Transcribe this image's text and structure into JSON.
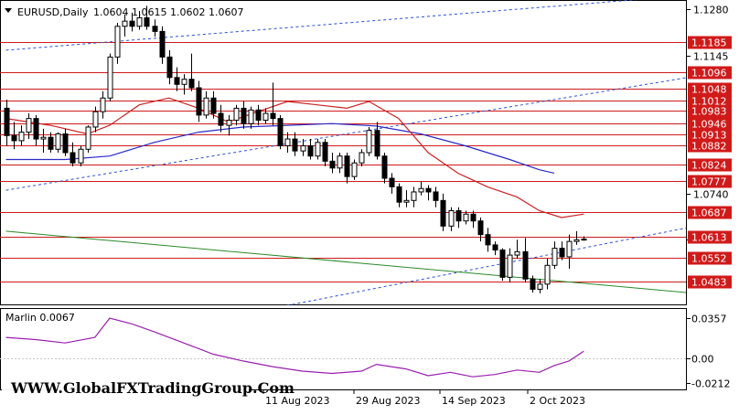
{
  "header": {
    "symbol_label": "EURUSD,Daily",
    "ohlc_label": "1.0604 1.0615 1.0602 1.0607"
  },
  "watermark": "WWW.GlobalFXTradingGroup.Com",
  "indicator": {
    "label": "Marlin 0.0067",
    "axis_ticks": [
      "0.0357",
      "0.00",
      "-0.0212"
    ]
  },
  "colors": {
    "level_line": "#d01a1a",
    "ma_fast": "#cc2222",
    "ma_slow": "#2a2ac8",
    "trend_line_dotted": "#2b4fd6",
    "trend_line_green": "#2a8a2a",
    "bullish_body": "#ffffff",
    "bearish_body": "#000000",
    "marlin": "#9a1fb0",
    "current_price_tag": "#000000"
  },
  "chart_data": {
    "type": "candlestick",
    "symbol": "EURUSD",
    "timeframe": "Daily",
    "last_ohlc": {
      "open": 1.0604,
      "high": 1.0615,
      "low": 1.0602,
      "close": 1.0607
    },
    "ylim": [
      1.0413,
      1.1307
    ],
    "price_axis_ticks": [
      "1.1280",
      "1.1145",
      "1.0740"
    ],
    "x_axis_labels": [
      "11 Aug 2023",
      "29 Aug 2023",
      "14 Sep 2023",
      "2 Oct 2023"
    ],
    "horizontal_levels": [
      {
        "label": "1.1185",
        "value": 1.1185
      },
      {
        "label": "1.1096",
        "value": 1.1096
      },
      {
        "label": "1.1048",
        "value": 1.1048
      },
      {
        "label": "1.1012",
        "value": 1.1012
      },
      {
        "label": "1.0983",
        "value": 1.0983
      },
      {
        "label": "1.0946",
        "value": 1.0946
      },
      {
        "label": "1.0913",
        "value": 1.0913
      },
      {
        "label": "1.0882",
        "value": 1.0882
      },
      {
        "label": "1.0824",
        "value": 1.0824
      },
      {
        "label": "1.0777",
        "value": 1.0777
      },
      {
        "label": "1.0687",
        "value": 1.0687
      },
      {
        "label": "1.0613",
        "value": 1.0613
      },
      {
        "label": "1.0552",
        "value": 1.0552
      },
      {
        "label": "1.0483",
        "value": 1.0483
      }
    ],
    "candles": [
      [
        1.099,
        1.1015,
        1.088,
        1.091
      ],
      [
        1.091,
        1.095,
        1.087,
        1.0895
      ],
      [
        1.0895,
        1.094,
        1.088,
        1.092
      ],
      [
        1.092,
        1.0975,
        1.09,
        1.096
      ],
      [
        1.096,
        1.097,
        1.088,
        1.09
      ],
      [
        1.09,
        1.093,
        1.086,
        1.0905
      ],
      [
        1.0905,
        1.092,
        1.086,
        1.087
      ],
      [
        1.087,
        1.092,
        1.086,
        1.0915
      ],
      [
        1.0915,
        1.093,
        1.085,
        1.086
      ],
      [
        1.086,
        1.089,
        1.082,
        1.083
      ],
      [
        1.083,
        1.088,
        1.082,
        1.087
      ],
      [
        1.087,
        1.094,
        1.086,
        1.0935
      ],
      [
        1.0935,
        1.0995,
        1.092,
        1.098
      ],
      [
        1.098,
        1.104,
        1.096,
        1.102
      ],
      [
        1.102,
        1.115,
        1.101,
        1.114
      ],
      [
        1.114,
        1.124,
        1.112,
        1.123
      ],
      [
        1.123,
        1.1265,
        1.12,
        1.1245
      ],
      [
        1.1245,
        1.127,
        1.1215,
        1.123
      ],
      [
        1.123,
        1.1275,
        1.122,
        1.1255
      ],
      [
        1.1255,
        1.129,
        1.122,
        1.123
      ],
      [
        1.123,
        1.125,
        1.12,
        1.1215
      ],
      [
        1.1215,
        1.123,
        1.112,
        1.114
      ],
      [
        1.114,
        1.116,
        1.106,
        1.108
      ],
      [
        1.108,
        1.111,
        1.104,
        1.106
      ],
      [
        1.106,
        1.109,
        1.103,
        1.1075
      ],
      [
        1.1075,
        1.115,
        1.104,
        1.105
      ],
      [
        1.105,
        1.107,
        1.095,
        1.097
      ],
      [
        1.097,
        1.104,
        1.096,
        1.102
      ],
      [
        1.102,
        1.104,
        1.096,
        1.0975
      ],
      [
        1.0975,
        1.1,
        1.092,
        1.094
      ],
      [
        1.094,
        1.097,
        1.091,
        1.0955
      ],
      [
        1.0955,
        1.1,
        1.094,
        1.099
      ],
      [
        1.099,
        1.101,
        1.093,
        1.0945
      ],
      [
        1.0945,
        1.0995,
        1.093,
        1.0985
      ],
      [
        1.0985,
        1.1,
        1.094,
        1.0955
      ],
      [
        1.0955,
        1.099,
        1.0945,
        1.0975
      ],
      [
        1.0975,
        1.1065,
        1.094,
        1.096
      ],
      [
        1.096,
        1.097,
        1.087,
        1.088
      ],
      [
        1.088,
        1.092,
        1.086,
        1.09
      ],
      [
        1.09,
        1.092,
        1.085,
        1.0865
      ],
      [
        1.0865,
        1.09,
        1.085,
        1.088
      ],
      [
        1.088,
        1.09,
        1.084,
        1.085
      ],
      [
        1.085,
        1.09,
        1.084,
        1.089
      ],
      [
        1.089,
        1.09,
        1.082,
        1.0835
      ],
      [
        1.0835,
        1.086,
        1.08,
        1.0815
      ],
      [
        1.0815,
        1.086,
        1.08,
        1.085
      ],
      [
        1.085,
        1.086,
        1.077,
        1.079
      ],
      [
        1.079,
        1.084,
        1.078,
        1.083
      ],
      [
        1.083,
        1.087,
        1.082,
        1.086
      ],
      [
        1.086,
        1.0935,
        1.085,
        1.0925
      ],
      [
        1.0925,
        1.095,
        1.084,
        1.085
      ],
      [
        1.085,
        1.086,
        1.077,
        1.0785
      ],
      [
        1.0785,
        1.08,
        1.074,
        1.076
      ],
      [
        1.076,
        1.077,
        1.07,
        1.0715
      ],
      [
        1.0715,
        1.075,
        1.07,
        1.072
      ],
      [
        1.072,
        1.076,
        1.07,
        1.0745
      ],
      [
        1.0745,
        1.0775,
        1.0735,
        1.0755
      ],
      [
        1.0755,
        1.0765,
        1.072,
        1.0745
      ],
      [
        1.0745,
        1.076,
        1.07,
        1.072
      ],
      [
        1.072,
        1.074,
        1.063,
        1.0645
      ],
      [
        1.0645,
        1.07,
        1.063,
        1.069
      ],
      [
        1.069,
        1.07,
        1.064,
        1.066
      ],
      [
        1.066,
        1.069,
        1.065,
        1.068
      ],
      [
        1.068,
        1.069,
        1.064,
        1.066
      ],
      [
        1.066,
        1.067,
        1.06,
        1.062
      ],
      [
        1.062,
        1.064,
        1.057,
        1.059
      ],
      [
        1.059,
        1.06,
        1.056,
        1.0575
      ],
      [
        1.0575,
        1.058,
        1.0485,
        1.0495
      ],
      [
        1.0495,
        1.058,
        1.048,
        1.056
      ],
      [
        1.056,
        1.0605,
        1.055,
        1.057
      ],
      [
        1.057,
        1.061,
        1.048,
        1.049
      ],
      [
        1.049,
        1.05,
        1.045,
        1.046
      ],
      [
        1.046,
        1.049,
        1.0448,
        1.0475
      ],
      [
        1.0475,
        1.055,
        1.046,
        1.053
      ],
      [
        1.053,
        1.06,
        1.052,
        1.058
      ],
      [
        1.058,
        1.06,
        1.0545,
        1.0555
      ],
      [
        1.0555,
        1.062,
        1.052,
        1.06
      ],
      [
        1.06,
        1.063,
        1.059,
        1.0605
      ],
      [
        1.0604,
        1.0615,
        1.0602,
        1.0607
      ]
    ],
    "ma_fast": [
      [
        0,
        1.096
      ],
      [
        6,
        1.094
      ],
      [
        11,
        1.0915
      ],
      [
        14,
        1.094
      ],
      [
        18,
        1.1
      ],
      [
        22,
        1.102
      ],
      [
        26,
        1.099
      ],
      [
        30,
        1.095
      ],
      [
        34,
        1.098
      ],
      [
        38,
        1.101
      ],
      [
        42,
        1.1
      ],
      [
        46,
        1.099
      ],
      [
        49,
        1.101
      ],
      [
        53,
        1.096
      ],
      [
        57,
        1.086
      ],
      [
        61,
        1.08
      ],
      [
        65,
        1.076
      ],
      [
        69,
        1.073
      ],
      [
        72,
        1.069
      ],
      [
        75,
        1.067
      ],
      [
        78,
        1.068
      ]
    ],
    "ma_slow": [
      [
        0,
        1.084
      ],
      [
        8,
        1.084
      ],
      [
        14,
        1.085
      ],
      [
        20,
        1.089
      ],
      [
        26,
        1.092
      ],
      [
        32,
        1.0935
      ],
      [
        38,
        1.094
      ],
      [
        44,
        1.0945
      ],
      [
        50,
        1.0938
      ],
      [
        56,
        1.0915
      ],
      [
        62,
        1.088
      ],
      [
        68,
        1.084
      ],
      [
        72,
        1.081
      ],
      [
        74,
        1.08
      ]
    ],
    "dotted_trend_upper": [
      [
        0,
        1.116
      ],
      [
        92,
        1.132
      ]
    ],
    "dotted_trend_lower": [
      [
        0,
        1.075
      ],
      [
        92,
        1.108
      ]
    ],
    "dotted_trend_channel": [
      [
        35,
        1.04
      ],
      [
        92,
        1.064
      ]
    ],
    "green_trend": [
      [
        0,
        1.063
      ],
      [
        92,
        1.045
      ]
    ],
    "marlin": [
      [
        0,
        0.019
      ],
      [
        4,
        0.017
      ],
      [
        8,
        0.014
      ],
      [
        12,
        0.019
      ],
      [
        14,
        0.036
      ],
      [
        17,
        0.031
      ],
      [
        20,
        0.024
      ],
      [
        24,
        0.014
      ],
      [
        28,
        0.004
      ],
      [
        32,
        -0.002
      ],
      [
        36,
        -0.007
      ],
      [
        40,
        -0.011
      ],
      [
        44,
        -0.013
      ],
      [
        48,
        -0.011
      ],
      [
        50,
        -0.005
      ],
      [
        54,
        -0.009
      ],
      [
        57,
        -0.015
      ],
      [
        60,
        -0.012
      ],
      [
        63,
        -0.016
      ],
      [
        66,
        -0.014
      ],
      [
        69,
        -0.01
      ],
      [
        72,
        -0.012
      ],
      [
        74,
        -0.006
      ],
      [
        76,
        -0.002
      ],
      [
        78,
        0.0067
      ]
    ]
  }
}
